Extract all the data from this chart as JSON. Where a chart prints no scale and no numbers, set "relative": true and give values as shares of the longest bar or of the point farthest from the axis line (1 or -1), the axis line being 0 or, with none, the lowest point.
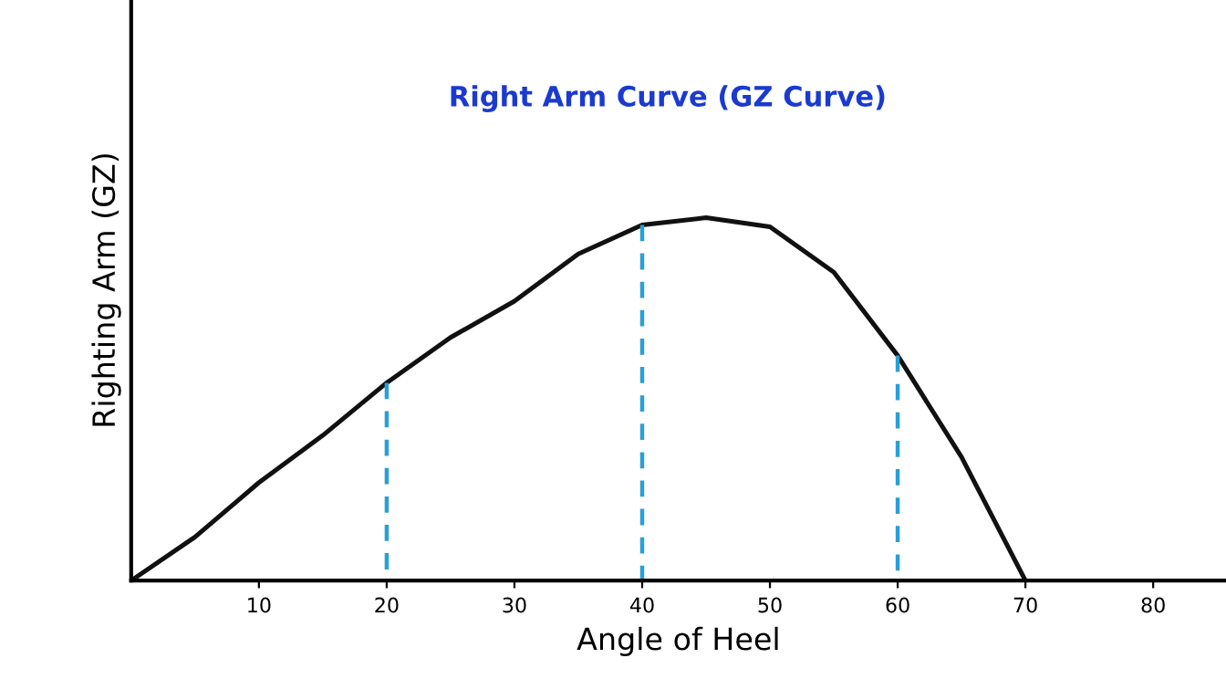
{
  "chart_data": {
    "type": "line",
    "title": "Right Arm Curve (GZ Curve)",
    "xlabel": "Angle of Heel",
    "ylabel": "Righting Arm (GZ)",
    "relative": true,
    "xlim": [
      0,
      85.7
    ],
    "xticks": [
      10,
      20,
      30,
      40,
      50,
      60,
      70,
      80
    ],
    "series": [
      {
        "color": "#111111",
        "x": [
          0,
          5,
          10,
          15,
          20,
          25,
          30,
          35,
          40,
          45,
          50,
          55,
          60,
          65,
          70
        ],
        "values": [
          0,
          0.12,
          0.27,
          0.4,
          0.545,
          0.67,
          0.77,
          0.9,
          0.98,
          1,
          0.975,
          0.85,
          0.62,
          0.34,
          0
        ]
      },
      {
        "color": "#2a9fd6",
        "line_style": "dashed",
        "x": [
          20,
          20
        ],
        "values": [
          0,
          0.545
        ]
      },
      {
        "color": "#2a9fd6",
        "line_style": "dashed",
        "x": [
          40,
          40
        ],
        "values": [
          0,
          0.98
        ]
      },
      {
        "color": "#2a9fd6",
        "line_style": "dashed",
        "x": [
          60,
          60
        ],
        "values": [
          0,
          0.62
        ]
      }
    ],
    "grid": false,
    "legend": false
  }
}
